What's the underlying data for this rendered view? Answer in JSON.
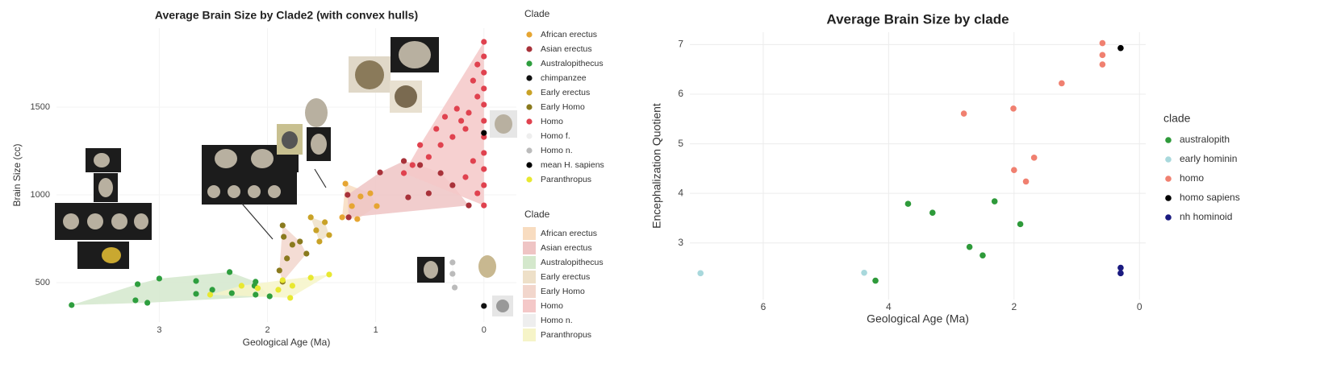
{
  "chart_data": [
    {
      "type": "scatter",
      "title": "Average Brain Size by Clade2 (with convex hulls)",
      "x_label": "Geological Age (Ma)",
      "y_label": "Brain Size (cc)",
      "xlim": [
        3.95,
        -0.3
      ],
      "ylim": [
        275,
        1950
      ],
      "xticks": [
        3,
        2,
        1,
        0
      ],
      "yticks": [
        500,
        1000,
        1500
      ],
      "grid": true,
      "legend_title": "Clade",
      "hull_legend_title": "Clade",
      "series": [
        {
          "name": "African erectus",
          "color": "#e6a532",
          "x": [
            1.28,
            1.22,
            1.14,
            1.05,
            0.99,
            1.31,
            1.17
          ],
          "values": [
            1064,
            936,
            991,
            1009,
            936,
            872,
            862
          ]
        },
        {
          "name": "Asian erectus",
          "color": "#a8323a",
          "x": [
            1.26,
            1.25,
            0.96,
            0.74,
            0.59,
            0.4,
            0.29,
            0.14,
            0.7,
            0.51
          ],
          "values": [
            1000,
            872,
            1128,
            1193,
            1170,
            1124,
            1055,
            940,
            986,
            1009
          ]
        },
        {
          "name": "Australopithecus",
          "color": "#2e9e3e",
          "x": [
            3.2,
            3.22,
            3.11,
            3.0,
            2.66,
            2.66,
            2.51,
            2.35,
            2.33,
            2.12,
            2.11,
            1.98,
            2.11,
            3.81
          ],
          "values": [
            491,
            399,
            385,
            523,
            509,
            436,
            459,
            560,
            440,
            482,
            431,
            422,
            505,
            372
          ]
        },
        {
          "name": "chimpanzee",
          "color": "#111111",
          "x": [
            0
          ],
          "values": [
            367
          ]
        },
        {
          "name": "Early erectus",
          "color": "#c9a227",
          "x": [
            1.6,
            1.55,
            1.47,
            1.52,
            1.43
          ],
          "values": [
            872,
            798,
            844,
            734,
            771
          ]
        },
        {
          "name": "Early Homo",
          "color": "#8a7a1e",
          "x": [
            1.86,
            1.85,
            1.82,
            1.77,
            1.7,
            1.64,
            1.89,
            1.86
          ],
          "values": [
            826,
            761,
            638,
            716,
            734,
            665,
            569,
            505
          ]
        },
        {
          "name": "Homo",
          "color": "#e0424f",
          "x": [
            0,
            0,
            0,
            0,
            0,
            0,
            0,
            0,
            0,
            0,
            0,
            0.06,
            0.1,
            0.06,
            0.14,
            0.17,
            0.21,
            0.29,
            0.36,
            0.4,
            0.44,
            0.51,
            0.59,
            0.66,
            0.74,
            0.1,
            0.17,
            0.25,
            0.06
          ],
          "values": [
            1872,
            1789,
            1697,
            1606,
            1514,
            1422,
            1330,
            1239,
            1147,
            1055,
            940,
            1743,
            1651,
            1560,
            1468,
            1376,
            1422,
            1330,
            1445,
            1284,
            1376,
            1216,
            1284,
            1170,
            1124,
            1193,
            1101,
            1491,
            1009
          ]
        },
        {
          "name": "Homo f.",
          "color": "#eeeeee",
          "x": [],
          "values": []
        },
        {
          "name": "Homo n.",
          "color": "#bbbbbb",
          "x": [
            0.29,
            0.29,
            0.27
          ],
          "values": [
            615,
            550,
            472
          ]
        },
        {
          "name": "mean H. sapiens",
          "color": "#000000",
          "x": [
            0
          ],
          "values": [
            1353
          ]
        },
        {
          "name": "Paranthropus",
          "color": "#e8e830",
          "x": [
            2.53,
            2.24,
            2.09,
            1.9,
            1.79,
            1.77,
            1.6,
            1.43,
            1.86
          ],
          "values": [
            431,
            482,
            468,
            459,
            413,
            482,
            528,
            546,
            514
          ]
        }
      ],
      "hulls": [
        {
          "name": "African erectus",
          "color": "#f8dcc0"
        },
        {
          "name": "Asian erectus",
          "color": "#efc4c4"
        },
        {
          "name": "Australopithecus",
          "color": "#d4e8cc"
        },
        {
          "name": "Early erectus",
          "color": "#eee0c8"
        },
        {
          "name": "Early Homo",
          "color": "#f2d6cc"
        },
        {
          "name": "Homo",
          "color": "#f4c8c8"
        },
        {
          "name": "Homo n.",
          "color": "#eeeeee"
        },
        {
          "name": "Paranthropus",
          "color": "#f6f4c8"
        }
      ]
    },
    {
      "type": "scatter",
      "title": "Average Brain Size by clade",
      "x_label": "Geological Age (Ma)",
      "y_label": "Encephalization Quotient",
      "xlim": [
        7.17,
        -0.1
      ],
      "ylim": [
        1.86,
        7.25
      ],
      "xticks": [
        6,
        4,
        2,
        0
      ],
      "yticks": [
        3,
        4,
        5,
        6,
        7
      ],
      "grid": true,
      "legend_title": "clade",
      "series": [
        {
          "name": "australopith",
          "color": "#2e9a3a",
          "x": [
            3.69,
            3.3,
            2.31,
            1.9,
            2.71,
            2.5,
            4.21
          ],
          "values": [
            3.79,
            3.61,
            3.84,
            3.38,
            2.92,
            2.75,
            2.24
          ]
        },
        {
          "name": "early hominin",
          "color": "#a8d8dc",
          "x": [
            7.0,
            4.39
          ],
          "values": [
            2.39,
            2.4
          ]
        },
        {
          "name": "homo",
          "color": "#f08070",
          "x": [
            0.59,
            0.59,
            0.59,
            1.24,
            2.01,
            2.8,
            1.68,
            2.0,
            1.81
          ],
          "values": [
            7.03,
            6.79,
            6.6,
            6.22,
            5.71,
            5.61,
            4.72,
            4.47,
            4.24
          ]
        },
        {
          "name": "homo sapiens",
          "color": "#000000",
          "x": [
            0.3
          ],
          "values": [
            6.93
          ]
        },
        {
          "name": "nh hominoid",
          "color": "#1a1a80",
          "x": [
            0.3,
            0.3
          ],
          "values": [
            2.5,
            2.39
          ]
        }
      ]
    }
  ]
}
